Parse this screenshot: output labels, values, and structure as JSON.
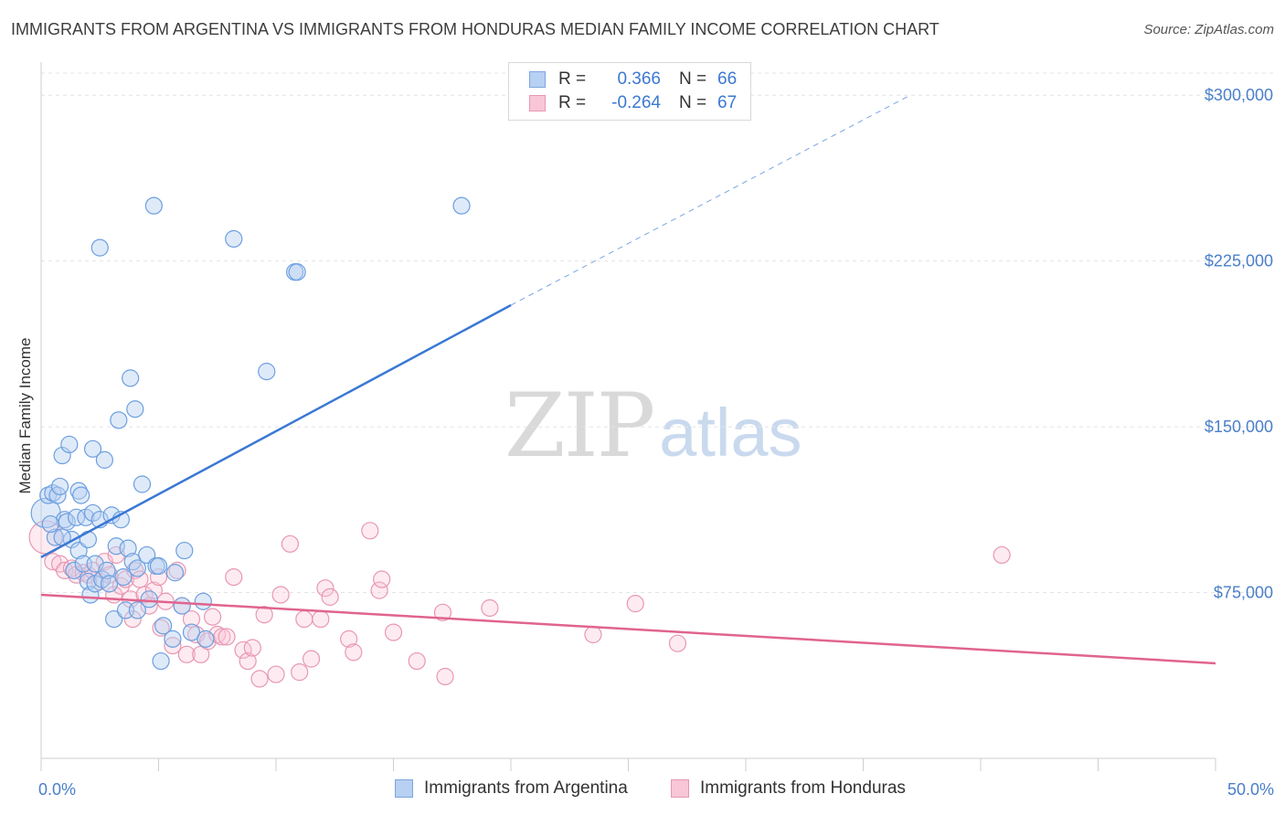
{
  "header": {
    "title": "IMMIGRANTS FROM ARGENTINA VS IMMIGRANTS FROM HONDURAS MEDIAN FAMILY INCOME CORRELATION CHART",
    "source": "Source: ZipAtlas.com"
  },
  "watermark": {
    "zip": "ZIP",
    "atlas": "atlas"
  },
  "legend": {
    "rows": [
      {
        "r_label": "R =",
        "r_value": "0.366",
        "n_label": "N =",
        "n_value": "66",
        "fill": "#b8d0f2",
        "stroke": "#7aa6e0"
      },
      {
        "r_label": "R =",
        "r_value": "-0.264",
        "n_label": "N =",
        "n_value": "67",
        "fill": "#f8c6d6",
        "stroke": "#e897b2"
      }
    ]
  },
  "bottom_legend": {
    "items": [
      {
        "label": "Immigrants from Argentina",
        "fill": "#b8d0f2",
        "stroke": "#7aa6e0"
      },
      {
        "label": "Immigrants from Honduras",
        "fill": "#f8c6d6",
        "stroke": "#e897b2"
      }
    ]
  },
  "chart_data": {
    "type": "scatter",
    "title": "IMMIGRANTS FROM ARGENTINA VS IMMIGRANTS FROM HONDURAS MEDIAN FAMILY INCOME CORRELATION CHART",
    "xlabel": "",
    "ylabel": "Median Family Income",
    "xlim": [
      0,
      50
    ],
    "ylim": [
      0,
      310000
    ],
    "x_tick_labels": [
      "0.0%",
      "50.0%"
    ],
    "y_ticks": [
      75000,
      150000,
      225000,
      300000
    ],
    "y_tick_labels": [
      "$75,000",
      "$150,000",
      "$225,000",
      "$300,000"
    ],
    "grid": true,
    "legend_position": "top-center",
    "series": [
      {
        "name": "Immigrants from Argentina",
        "color": "#4a86d8",
        "fill": "#b8d0f2",
        "trend": {
          "x": [
            0,
            20
          ],
          "y": [
            91000,
            205000
          ],
          "dashed_to": [
            37,
            300000
          ]
        },
        "points": [
          [
            0.2,
            111000
          ],
          [
            0.3,
            119000
          ],
          [
            0.5,
            120000
          ],
          [
            0.6,
            100000
          ],
          [
            0.7,
            119000
          ],
          [
            0.8,
            123000
          ],
          [
            0.9,
            137000
          ],
          [
            1.0,
            108000
          ],
          [
            1.1,
            107000
          ],
          [
            1.2,
            142000
          ],
          [
            1.3,
            99000
          ],
          [
            1.4,
            85000
          ],
          [
            1.5,
            109000
          ],
          [
            1.6,
            94000
          ],
          [
            1.6,
            121000
          ],
          [
            1.7,
            119000
          ],
          [
            1.8,
            88000
          ],
          [
            1.9,
            109000
          ],
          [
            2.0,
            99000
          ],
          [
            2.0,
            80000
          ],
          [
            2.1,
            74000
          ],
          [
            2.2,
            111000
          ],
          [
            2.2,
            140000
          ],
          [
            2.3,
            79000
          ],
          [
            2.3,
            88000
          ],
          [
            2.5,
            231000
          ],
          [
            2.5,
            108000
          ],
          [
            2.6,
            81000
          ],
          [
            2.7,
            135000
          ],
          [
            2.8,
            85000
          ],
          [
            2.9,
            79000
          ],
          [
            3.0,
            110000
          ],
          [
            3.1,
            63000
          ],
          [
            3.2,
            96000
          ],
          [
            3.3,
            153000
          ],
          [
            3.4,
            108000
          ],
          [
            3.5,
            82000
          ],
          [
            3.6,
            67000
          ],
          [
            3.7,
            95000
          ],
          [
            3.8,
            172000
          ],
          [
            3.9,
            89000
          ],
          [
            4.0,
            158000
          ],
          [
            4.1,
            86000
          ],
          [
            4.1,
            67000
          ],
          [
            4.3,
            124000
          ],
          [
            4.5,
            92000
          ],
          [
            4.6,
            72000
          ],
          [
            4.8,
            250000
          ],
          [
            4.9,
            87000
          ],
          [
            5.0,
            87000
          ],
          [
            5.1,
            44000
          ],
          [
            5.2,
            60000
          ],
          [
            5.6,
            54000
          ],
          [
            5.7,
            84000
          ],
          [
            6.0,
            69000
          ],
          [
            6.1,
            94000
          ],
          [
            6.4,
            57000
          ],
          [
            6.9,
            71000
          ],
          [
            7.0,
            54000
          ],
          [
            8.2,
            235000
          ],
          [
            9.6,
            175000
          ],
          [
            10.8,
            220000
          ],
          [
            10.9,
            220000
          ],
          [
            17.9,
            250000
          ],
          [
            0.4,
            106000
          ],
          [
            0.9,
            100000
          ]
        ]
      },
      {
        "name": "Immigrants from Honduras",
        "color": "#e0648e",
        "fill": "#f8c6d6",
        "trend": {
          "x": [
            0,
            50
          ],
          "y": [
            74000,
            43000
          ]
        },
        "points": [
          [
            0.2,
            100000
          ],
          [
            0.5,
            89000
          ],
          [
            0.8,
            88000
          ],
          [
            1.0,
            85000
          ],
          [
            1.3,
            86000
          ],
          [
            1.5,
            83000
          ],
          [
            1.8,
            84000
          ],
          [
            2.0,
            83000
          ],
          [
            2.2,
            85000
          ],
          [
            2.5,
            80000
          ],
          [
            2.7,
            89000
          ],
          [
            2.9,
            83000
          ],
          [
            3.1,
            74000
          ],
          [
            3.2,
            92000
          ],
          [
            3.4,
            78000
          ],
          [
            3.6,
            81000
          ],
          [
            3.8,
            72000
          ],
          [
            3.9,
            63000
          ],
          [
            4.0,
            85000
          ],
          [
            4.2,
            81000
          ],
          [
            4.4,
            74000
          ],
          [
            4.6,
            69000
          ],
          [
            4.8,
            76000
          ],
          [
            5.0,
            82000
          ],
          [
            5.1,
            59000
          ],
          [
            5.3,
            71000
          ],
          [
            5.6,
            51000
          ],
          [
            5.8,
            85000
          ],
          [
            6.0,
            69000
          ],
          [
            6.2,
            47000
          ],
          [
            6.4,
            63000
          ],
          [
            6.6,
            56000
          ],
          [
            6.8,
            47000
          ],
          [
            7.1,
            53000
          ],
          [
            7.3,
            64000
          ],
          [
            7.5,
            56000
          ],
          [
            7.7,
            55000
          ],
          [
            7.9,
            55000
          ],
          [
            8.2,
            82000
          ],
          [
            8.6,
            49000
          ],
          [
            8.8,
            44000
          ],
          [
            9.0,
            50000
          ],
          [
            9.3,
            36000
          ],
          [
            9.5,
            65000
          ],
          [
            10.0,
            38000
          ],
          [
            10.2,
            74000
          ],
          [
            10.6,
            97000
          ],
          [
            11.0,
            39000
          ],
          [
            11.2,
            63000
          ],
          [
            11.5,
            45000
          ],
          [
            11.9,
            63000
          ],
          [
            12.1,
            77000
          ],
          [
            12.3,
            73000
          ],
          [
            13.1,
            54000
          ],
          [
            13.3,
            48000
          ],
          [
            14.0,
            103000
          ],
          [
            14.4,
            76000
          ],
          [
            14.5,
            81000
          ],
          [
            15.0,
            57000
          ],
          [
            16.0,
            44000
          ],
          [
            17.1,
            66000
          ],
          [
            17.2,
            37000
          ],
          [
            19.1,
            68000
          ],
          [
            23.5,
            56000
          ],
          [
            25.3,
            70000
          ],
          [
            27.1,
            52000
          ],
          [
            40.9,
            92000
          ]
        ]
      }
    ]
  }
}
